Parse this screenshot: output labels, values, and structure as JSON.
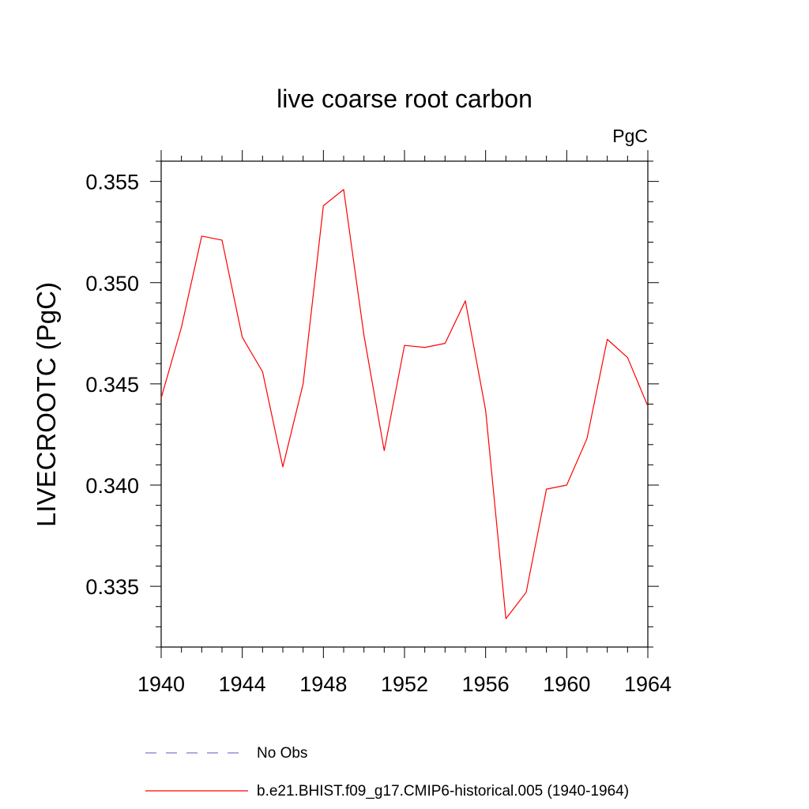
{
  "chart_data": {
    "type": "line",
    "title": "live coarse root carbon",
    "units_label": "PgC",
    "ylabel": "LIVECROOTC  (PgC)",
    "xlabel": "",
    "xlim": [
      1940,
      1964
    ],
    "ylim": [
      0.332,
      0.356
    ],
    "xticks": [
      1940,
      1944,
      1948,
      1952,
      1956,
      1960,
      1964
    ],
    "xtick_labels": [
      "1940",
      "1944",
      "1948",
      "1952",
      "1956",
      "1960",
      "1964"
    ],
    "yticks": [
      0.335,
      0.34,
      0.345,
      0.35,
      0.355
    ],
    "ytick_labels": [
      "0.335",
      "0.340",
      "0.345",
      "0.350",
      "0.355"
    ],
    "series": [
      {
        "name": "b.e21.BHIST.f09_g17.CMIP6-historical.005 (1940-1964)",
        "color": "#ff0000",
        "style": "solid",
        "x": [
          1940,
          1941,
          1942,
          1943,
          1944,
          1945,
          1946,
          1947,
          1948,
          1949,
          1950,
          1951,
          1952,
          1953,
          1954,
          1955,
          1956,
          1957,
          1958,
          1959,
          1960,
          1961,
          1962,
          1963,
          1964
        ],
        "y": [
          0.3443,
          0.3478,
          0.3523,
          0.3521,
          0.3473,
          0.3456,
          0.3409,
          0.345,
          0.3538,
          0.3546,
          0.3474,
          0.3417,
          0.3469,
          0.3468,
          0.347,
          0.3491,
          0.3437,
          0.3334,
          0.3347,
          0.3398,
          0.34,
          0.3423,
          0.3472,
          0.3463,
          0.3439
        ]
      }
    ],
    "legend": [
      {
        "label": "No Obs",
        "color": "#7a7acc",
        "style": "dashed"
      },
      {
        "label": "b.e21.BHIST.f09_g17.CMIP6-historical.005 (1940-1964)",
        "color": "#ff0000",
        "style": "solid"
      }
    ]
  }
}
